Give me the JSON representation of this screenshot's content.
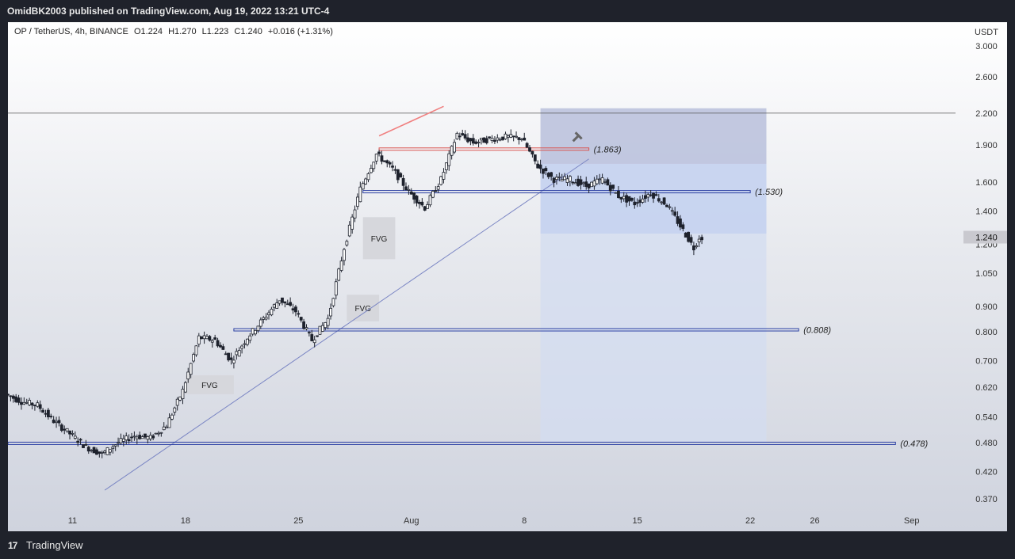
{
  "header": {
    "published_text": "OmidBK2003 published on TradingView.com, Aug 19, 2022 13:21 UTC-4"
  },
  "symbol_bar": {
    "symbol": "OP / TetherUS, 4h, BINANCE",
    "open": "O1.224",
    "high": "H1.270",
    "low": "L1.223",
    "close": "C1.240",
    "change": "+0.016 (+1.31%)"
  },
  "footer": {
    "logo": "17",
    "brand": "TradingView"
  },
  "colors": {
    "candle": "#1e222d",
    "blue_level": "#2b3fa3",
    "red_level": "#d9534f",
    "trendline": "#7b86c4",
    "zone_dark": "#b9c0dc",
    "zone_mid": "#c4d2ef",
    "zone_light": "#d3dcf0",
    "fvg_box": "#d6d7dc"
  },
  "chart_data": {
    "type": "candlestick",
    "title": "",
    "currency_label": "USDT",
    "y_scale": "log",
    "ylim": [
      0.34,
      3.35
    ],
    "y_ticks": [
      0.37,
      0.42,
      0.48,
      0.54,
      0.62,
      0.7,
      0.8,
      0.9,
      1.05,
      1.2,
      1.4,
      1.6,
      1.9,
      2.2,
      2.6,
      3.0
    ],
    "y_tick_labels": [
      "0.370",
      "0.420",
      "0.480",
      "0.540",
      "0.620",
      "0.700",
      "0.800",
      "0.900",
      "1.050",
      "1.200",
      "1.400",
      "1.600",
      "1.900",
      "2.200",
      "2.600",
      "3.000"
    ],
    "x_range_days": [
      "2022-07-07",
      "2022-09-02"
    ],
    "x_ticks": [
      {
        "date": "2022-07-11",
        "label": "11"
      },
      {
        "date": "2022-07-18",
        "label": "18"
      },
      {
        "date": "2022-07-25",
        "label": "25"
      },
      {
        "date": "2022-08-01",
        "label": "Aug"
      },
      {
        "date": "2022-08-08",
        "label": "8"
      },
      {
        "date": "2022-08-15",
        "label": "15"
      },
      {
        "date": "2022-08-22",
        "label": "22"
      },
      {
        "date": "2022-08-26",
        "label": "26"
      },
      {
        "date": "2022-09-01",
        "label": "Sep"
      }
    ],
    "price_path": [
      [
        "2022-07-07",
        0.6
      ],
      [
        "2022-07-08",
        0.58
      ],
      [
        "2022-07-09",
        0.57
      ],
      [
        "2022-07-10",
        0.53
      ],
      [
        "2022-07-11",
        0.5
      ],
      [
        "2022-07-12",
        0.47
      ],
      [
        "2022-07-13",
        0.455
      ],
      [
        "2022-07-14",
        0.48
      ],
      [
        "2022-07-15",
        0.495
      ],
      [
        "2022-07-16",
        0.49
      ],
      [
        "2022-07-17",
        0.52
      ],
      [
        "2022-07-18",
        0.61
      ],
      [
        "2022-07-19",
        0.78
      ],
      [
        "2022-07-20",
        0.77
      ],
      [
        "2022-07-21",
        0.7
      ],
      [
        "2022-07-22",
        0.78
      ],
      [
        "2022-07-23",
        0.85
      ],
      [
        "2022-07-24",
        0.93
      ],
      [
        "2022-07-25",
        0.88
      ],
      [
        "2022-07-26",
        0.77
      ],
      [
        "2022-07-27",
        0.85
      ],
      [
        "2022-07-28",
        1.18
      ],
      [
        "2022-07-29",
        1.55
      ],
      [
        "2022-07-30",
        1.82
      ],
      [
        "2022-07-31",
        1.7
      ],
      [
        "2022-08-01",
        1.53
      ],
      [
        "2022-08-02",
        1.42
      ],
      [
        "2022-08-03",
        1.62
      ],
      [
        "2022-08-04",
        2.0
      ],
      [
        "2022-08-05",
        1.92
      ],
      [
        "2022-08-06",
        1.95
      ],
      [
        "2022-08-07",
        1.97
      ],
      [
        "2022-08-08",
        1.96
      ],
      [
        "2022-08-09",
        1.72
      ],
      [
        "2022-08-10",
        1.62
      ],
      [
        "2022-08-11",
        1.62
      ],
      [
        "2022-08-12",
        1.57
      ],
      [
        "2022-08-13",
        1.62
      ],
      [
        "2022-08-14",
        1.5
      ],
      [
        "2022-08-15",
        1.45
      ],
      [
        "2022-08-16",
        1.52
      ],
      [
        "2022-08-17",
        1.44
      ],
      [
        "2022-08-18",
        1.28
      ],
      [
        "2022-08-18 16:00",
        1.18
      ],
      [
        "2022-08-19",
        1.24
      ]
    ],
    "last_price": 1.24,
    "last_price_label": "1.240",
    "levels": [
      {
        "value": 0.478,
        "label": "(0.478)",
        "color": "blue",
        "from": "2022-07-07",
        "to": "2022-08-31"
      },
      {
        "value": 0.808,
        "label": "(0.808)",
        "color": "blue",
        "from": "2022-07-21",
        "to": "2022-08-25"
      },
      {
        "value": 1.53,
        "label": "(1.530)",
        "color": "blue",
        "from": "2022-07-29",
        "to": "2022-08-22"
      },
      {
        "value": 1.863,
        "label": "(1.863)",
        "color": "red",
        "from": "2022-07-30",
        "to": "2022-08-12"
      }
    ],
    "horizontal_line": {
      "value": 2.2
    },
    "trendline": {
      "from": [
        "2022-07-13",
        0.385
      ],
      "to": [
        "2022-08-12",
        1.78
      ]
    },
    "divergence_line": {
      "from": [
        "2022-07-30",
        1.98
      ],
      "to": [
        "2022-08-03",
        2.27
      ]
    },
    "fvg_zones": [
      {
        "label": "FVG",
        "from": "2022-07-18",
        "to": "2022-07-21",
        "low": 0.6,
        "high": 0.655
      },
      {
        "label": "FVG",
        "from": "2022-07-28",
        "to": "2022-07-30",
        "low": 0.84,
        "high": 0.95
      },
      {
        "label": "FVG",
        "from": "2022-07-29",
        "to": "2022-07-31",
        "low": 1.12,
        "high": 1.36
      }
    ],
    "position_zone": {
      "from": "2022-08-09",
      "to": "2022-08-23",
      "stop_top": 2.25,
      "entry": 1.74,
      "target_top": 1.26,
      "bottom": 0.48
    }
  }
}
